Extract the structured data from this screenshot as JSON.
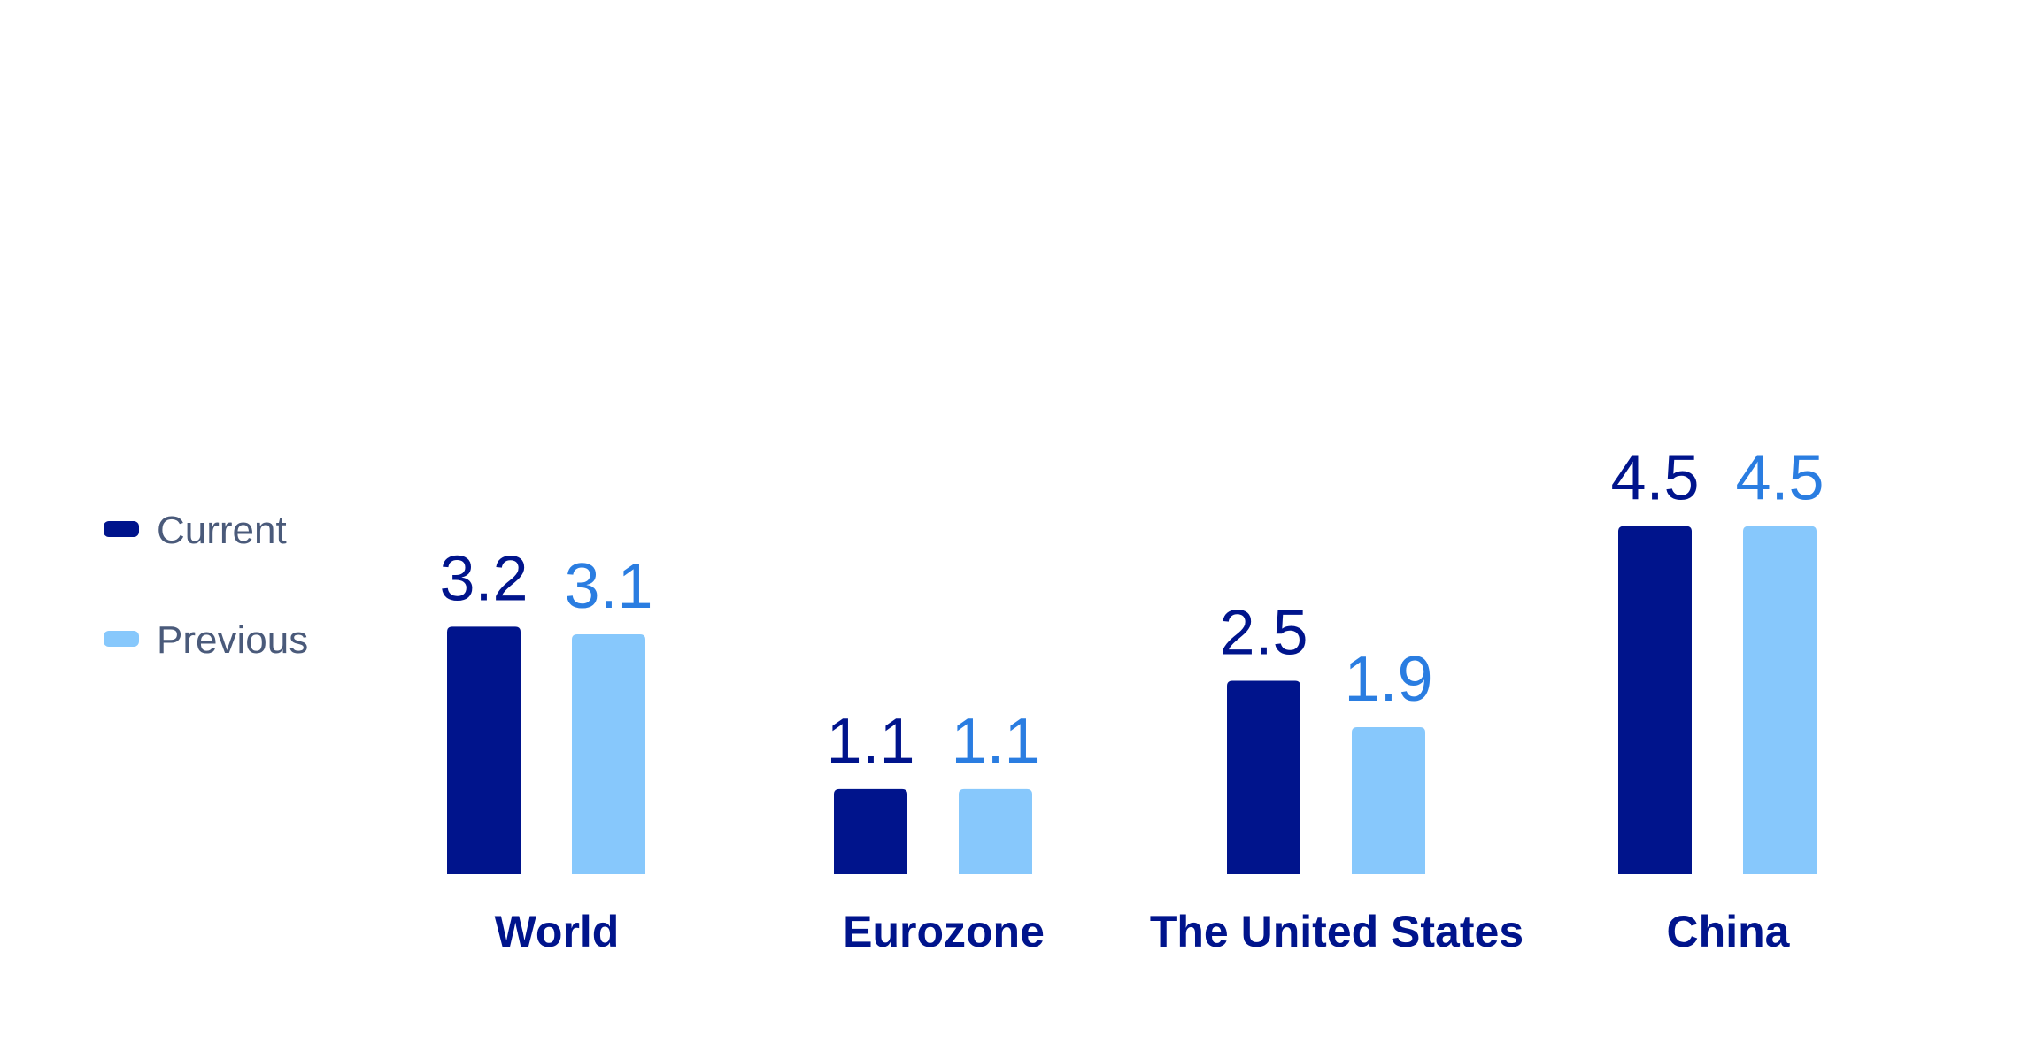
{
  "chart_data": {
    "type": "bar",
    "categories": [
      "World",
      "Eurozone",
      "The United States",
      "China"
    ],
    "series": [
      {
        "name": "Current",
        "color": "#00148c",
        "label_color": "#00148c",
        "values": [
          3.2,
          1.1,
          2.5,
          4.5
        ]
      },
      {
        "name": "Previous",
        "color": "#87c8fc",
        "label_color": "#2a7de1",
        "values": [
          3.1,
          1.1,
          1.9,
          4.5
        ]
      }
    ],
    "legend": "left"
  }
}
